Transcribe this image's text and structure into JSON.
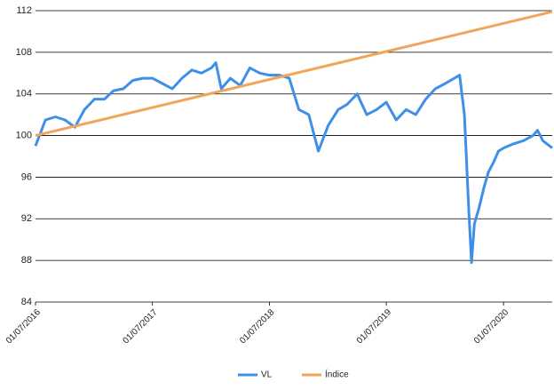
{
  "chart_data": {
    "type": "line",
    "xlim": [
      "01/07/2016",
      "30/11/2020"
    ],
    "xticks": [
      "01/07/2016",
      "01/07/2017",
      "01/07/2018",
      "01/07/2019",
      "01/07/2020"
    ],
    "ylim": [
      84,
      112
    ],
    "yticks": [
      84,
      88,
      92,
      96,
      100,
      104,
      108,
      112
    ],
    "grid": true,
    "legend": "bottom",
    "series": [
      {
        "name": "VL",
        "color": "#3f8fea",
        "x": [
          "01/07/2016",
          "01/08/2016",
          "01/09/2016",
          "01/10/2016",
          "01/11/2016",
          "01/12/2016",
          "01/01/2017",
          "01/02/2017",
          "01/03/2017",
          "01/04/2017",
          "01/05/2017",
          "01/06/2017",
          "01/07/2017",
          "01/08/2017",
          "01/09/2017",
          "01/10/2017",
          "01/11/2017",
          "01/12/2017",
          "01/01/2018",
          "15/01/2018",
          "01/02/2018",
          "01/03/2018",
          "01/04/2018",
          "01/05/2018",
          "01/06/2018",
          "01/07/2018",
          "01/08/2018",
          "01/09/2018",
          "01/10/2018",
          "01/11/2018",
          "01/12/2018",
          "01/01/2019",
          "01/02/2019",
          "01/03/2019",
          "01/04/2019",
          "01/05/2019",
          "01/06/2019",
          "01/07/2019",
          "01/08/2019",
          "01/09/2019",
          "01/10/2019",
          "01/11/2019",
          "01/12/2019",
          "01/01/2020",
          "15/02/2020",
          "01/03/2020",
          "15/03/2020",
          "23/03/2020",
          "01/04/2020",
          "15/04/2020",
          "01/05/2020",
          "15/05/2020",
          "01/06/2020",
          "15/06/2020",
          "01/07/2020",
          "01/08/2020",
          "01/09/2020",
          "01/10/2020",
          "15/10/2020",
          "01/11/2020",
          "30/11/2020"
        ],
        "values": [
          99,
          101.5,
          101.8,
          101.5,
          100.8,
          102.5,
          103.5,
          103.5,
          104.3,
          104.5,
          105.3,
          105.5,
          105.5,
          105,
          104.5,
          105.5,
          106.3,
          106,
          106.5,
          107,
          104.5,
          105.5,
          104.8,
          106.5,
          106,
          105.8,
          105.8,
          105.5,
          102.5,
          102,
          98.5,
          101,
          102.5,
          103,
          104,
          102,
          102.5,
          103.2,
          101.5,
          102.5,
          102,
          103.5,
          104.5,
          105,
          105.8,
          102,
          92.5,
          87.8,
          91.5,
          93,
          95,
          96.5,
          97.5,
          98.5,
          98.8,
          99.2,
          99.5,
          100,
          100.5,
          99.5,
          98.8
        ]
      },
      {
        "name": "Índice",
        "color": "#f0a55a",
        "x": [
          "01/07/2016",
          "30/11/2020"
        ],
        "values": [
          100,
          111.9
        ]
      }
    ]
  }
}
